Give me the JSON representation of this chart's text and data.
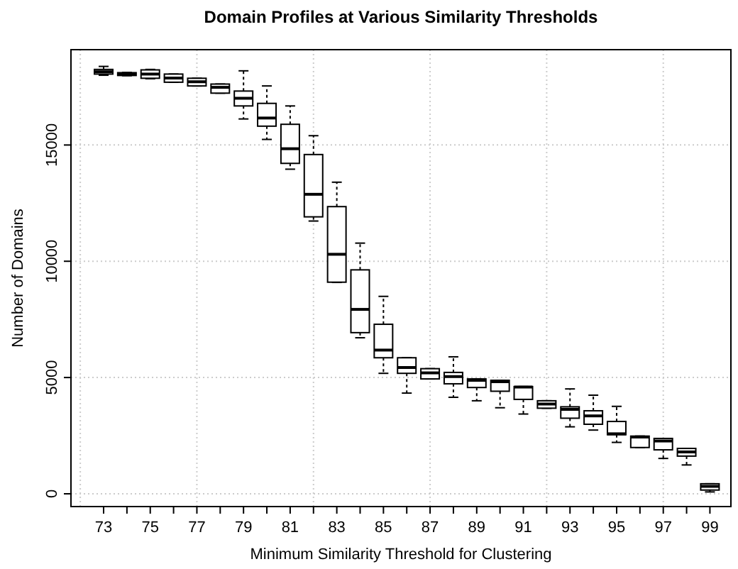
{
  "chart_data": {
    "type": "box",
    "title": "Domain Profiles at Various Similarity Thresholds",
    "xlabel": "Minimum Similarity Threshold for Clustering",
    "ylabel": "Number of Domains",
    "categories": [
      "73",
      null,
      "75",
      null,
      "77",
      null,
      "79",
      null,
      "81",
      null,
      "83",
      null,
      "85",
      null,
      "87",
      null,
      "89",
      null,
      "91",
      null,
      "93",
      null,
      "95",
      null,
      "97",
      null,
      "99"
    ],
    "boxes": [
      {
        "low": 18000,
        "q1": 18050,
        "median": 18150,
        "q3": 18250,
        "high": 18380
      },
      {
        "low": 17980,
        "q1": 17990,
        "median": 18050,
        "q3": 18110,
        "high": 18120
      },
      {
        "low": 17850,
        "q1": 17870,
        "median": 18050,
        "q3": 18230,
        "high": 18250
      },
      {
        "low": 17700,
        "q1": 17700,
        "median": 17880,
        "q3": 18050,
        "high": 18050
      },
      {
        "low": 17540,
        "q1": 17540,
        "median": 17720,
        "q3": 17870,
        "high": 17870
      },
      {
        "low": 17230,
        "q1": 17230,
        "median": 17480,
        "q3": 17620,
        "high": 17620
      },
      {
        "low": 16120,
        "q1": 16680,
        "median": 17010,
        "q3": 17320,
        "high": 18190
      },
      {
        "low": 15240,
        "q1": 15810,
        "median": 16160,
        "q3": 16790,
        "high": 17540
      },
      {
        "low": 13960,
        "q1": 14210,
        "median": 14840,
        "q3": 15890,
        "high": 16680
      },
      {
        "low": 11730,
        "q1": 11910,
        "median": 12880,
        "q3": 14590,
        "high": 15400
      },
      {
        "low": 9090,
        "q1": 9100,
        "median": 10300,
        "q3": 12350,
        "high": 13400
      },
      {
        "low": 6710,
        "q1": 6930,
        "median": 7930,
        "q3": 9630,
        "high": 10780
      },
      {
        "low": 5180,
        "q1": 5850,
        "median": 6180,
        "q3": 7290,
        "high": 8490
      },
      {
        "low": 4330,
        "q1": 5180,
        "median": 5430,
        "q3": 5850,
        "high": 5850
      },
      {
        "low": 4940,
        "q1": 4940,
        "median": 5200,
        "q3": 5380,
        "high": 5380
      },
      {
        "low": 4150,
        "q1": 4730,
        "median": 5040,
        "q3": 5220,
        "high": 5890
      },
      {
        "low": 4000,
        "q1": 4570,
        "median": 4880,
        "q3": 4940,
        "high": 4940
      },
      {
        "low": 3700,
        "q1": 4410,
        "median": 4820,
        "q3": 4880,
        "high": 4880
      },
      {
        "low": 3430,
        "q1": 4060,
        "median": 4590,
        "q3": 4610,
        "high": 4610
      },
      {
        "low": 3680,
        "q1": 3680,
        "median": 3860,
        "q3": 4000,
        "high": 4000
      },
      {
        "low": 2880,
        "q1": 3250,
        "median": 3630,
        "q3": 3740,
        "high": 4510
      },
      {
        "low": 2740,
        "q1": 2990,
        "median": 3350,
        "q3": 3570,
        "high": 4240
      },
      {
        "low": 2210,
        "q1": 2540,
        "median": 2580,
        "q3": 3110,
        "high": 3760
      },
      {
        "low": 1990,
        "q1": 1990,
        "median": 2440,
        "q3": 2480,
        "high": 2480
      },
      {
        "low": 1520,
        "q1": 1890,
        "median": 2270,
        "q3": 2380,
        "high": 2380
      },
      {
        "low": 1240,
        "q1": 1620,
        "median": 1800,
        "q3": 1950,
        "high": 1950
      },
      {
        "low": 80,
        "q1": 160,
        "median": 320,
        "q3": 430,
        "high": 430
      }
    ],
    "ylim": [
      -550,
      19100
    ],
    "yticks": [
      0,
      5000,
      10000,
      15000
    ],
    "grid": true
  }
}
